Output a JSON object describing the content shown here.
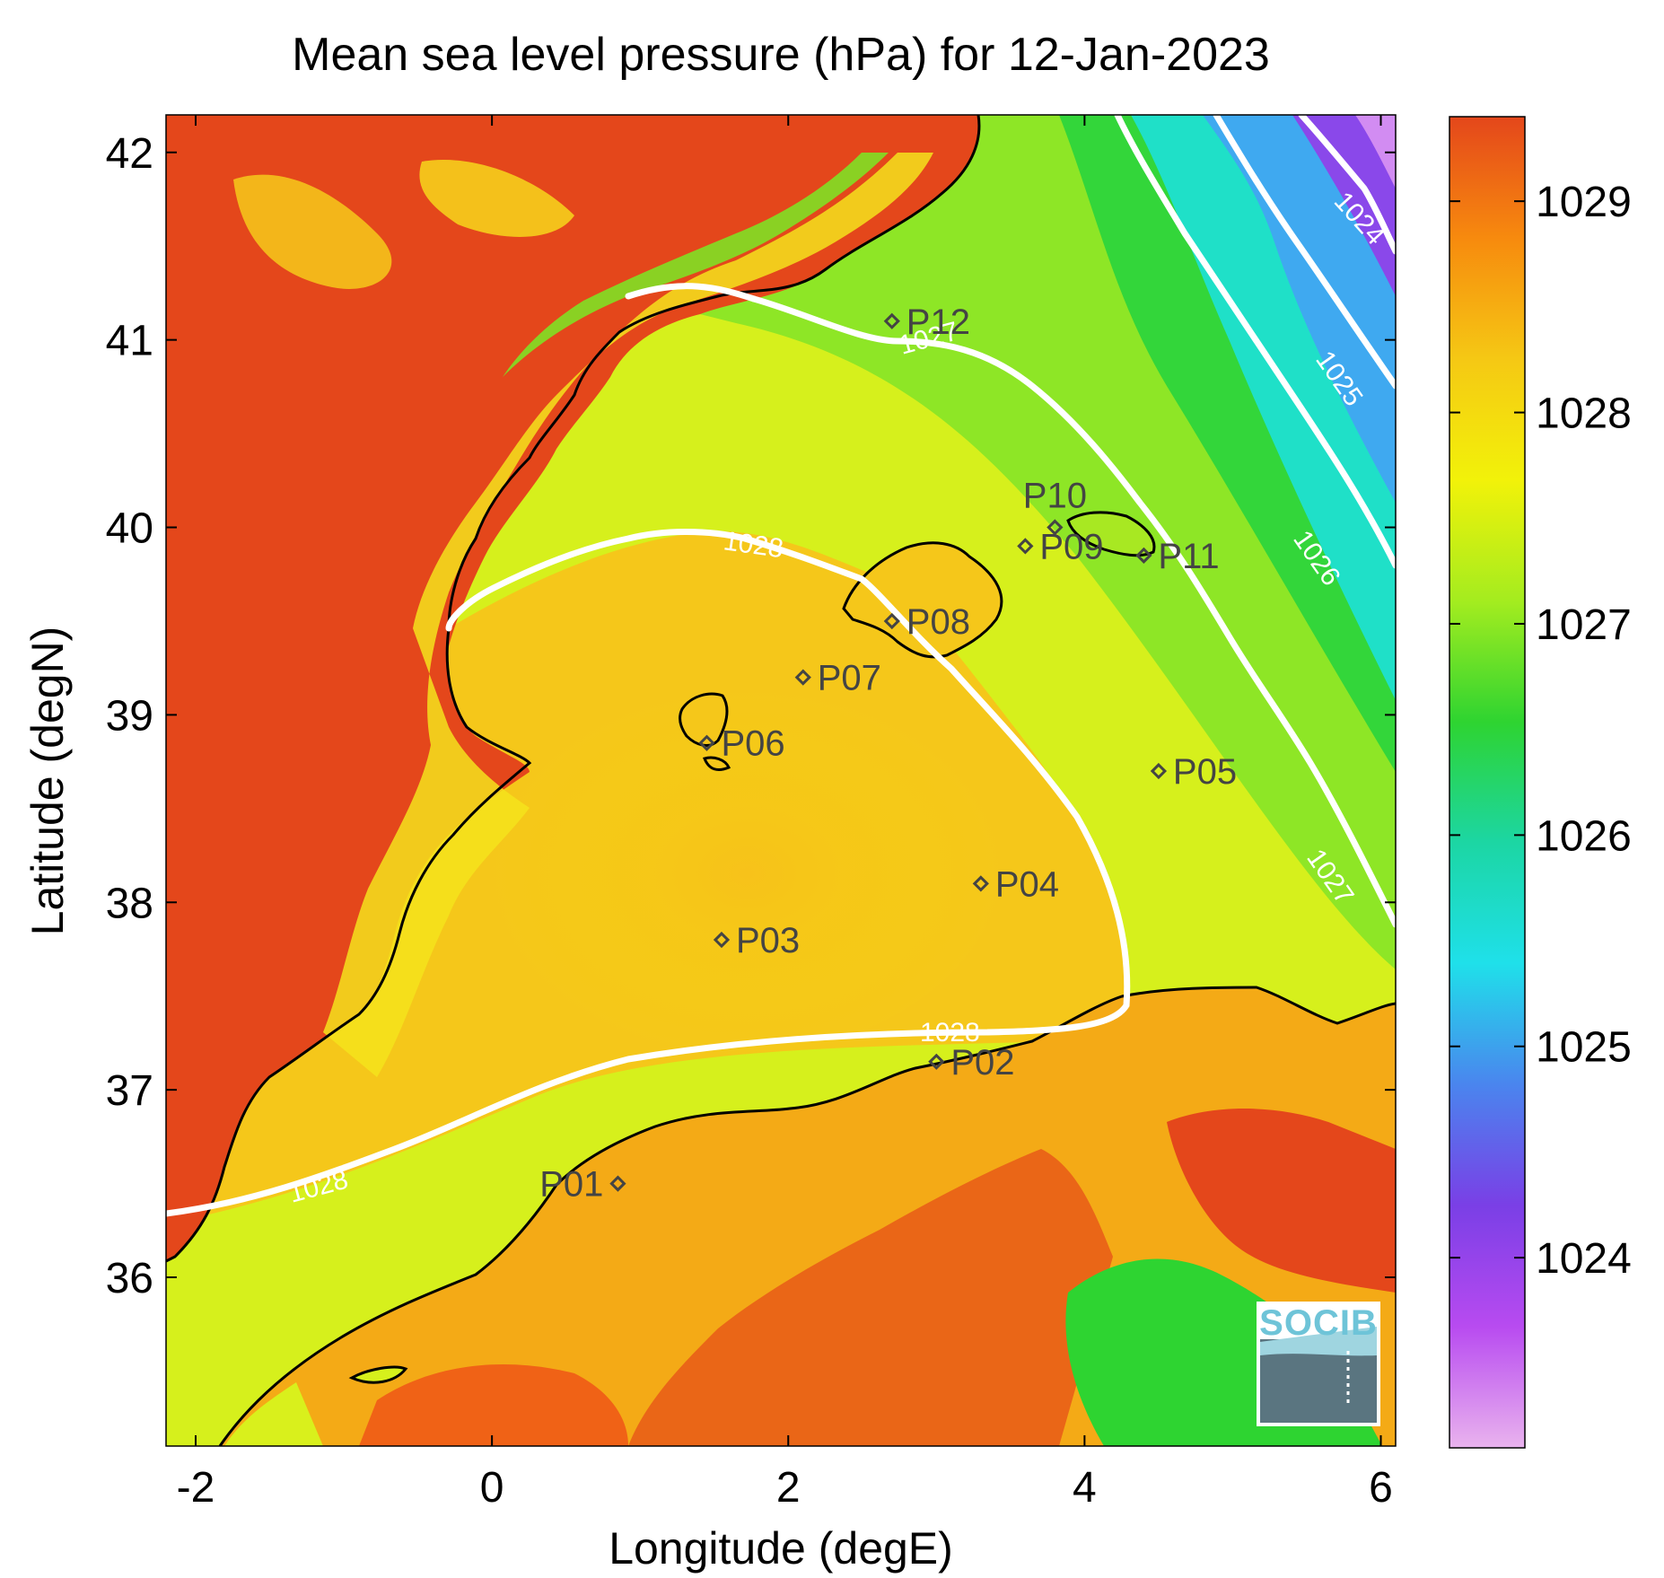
{
  "title": "Mean sea level pressure (hPa) for 12-Jan-2023",
  "xlabel": "Longitude (degE)",
  "ylabel": "Latitude (degN)",
  "x_ticks": [
    "-2",
    "0",
    "2",
    "4",
    "6"
  ],
  "y_ticks": [
    "36",
    "37",
    "38",
    "39",
    "40",
    "41",
    "42"
  ],
  "colorbar": {
    "ticks": [
      "1024",
      "1025",
      "1026",
      "1027",
      "1028",
      "1029"
    ],
    "range": [
      1023.1,
      1029.4
    ],
    "colors": [
      "#e9b3ee",
      "#b84bf0",
      "#7a3fe6",
      "#4a85ee",
      "#1fe0ea",
      "#1cd6a3",
      "#2ed431",
      "#a4ec1f",
      "#f2f209",
      "#f5c814",
      "#f78a0e",
      "#e4471b"
    ]
  },
  "chart_data": {
    "type": "map",
    "x_range": [
      -2.2,
      6.1
    ],
    "y_range": [
      35.1,
      42.2
    ],
    "grid": false,
    "contour_labels": [
      "1024",
      "1025",
      "1026",
      "1027",
      "1027",
      "1027",
      "1028",
      "1028",
      "1028"
    ],
    "stations": [
      {
        "id": "P01",
        "lon": 0.85,
        "lat": 36.5
      },
      {
        "id": "P02",
        "lon": 3.0,
        "lat": 37.15
      },
      {
        "id": "P03",
        "lon": 1.55,
        "lat": 37.8
      },
      {
        "id": "P04",
        "lon": 3.3,
        "lat": 38.1
      },
      {
        "id": "P05",
        "lon": 4.5,
        "lat": 38.7
      },
      {
        "id": "P06",
        "lon": 1.45,
        "lat": 38.85
      },
      {
        "id": "P07",
        "lon": 2.1,
        "lat": 39.2
      },
      {
        "id": "P08",
        "lon": 2.7,
        "lat": 39.5
      },
      {
        "id": "P09",
        "lon": 3.6,
        "lat": 39.9
      },
      {
        "id": "P10",
        "lon": 3.8,
        "lat": 40.0
      },
      {
        "id": "P11",
        "lon": 4.4,
        "lat": 39.85
      },
      {
        "id": "P12",
        "lon": 2.7,
        "lat": 41.1
      }
    ]
  },
  "logo": {
    "text": "SOCIB",
    "name": "socib-logo"
  }
}
